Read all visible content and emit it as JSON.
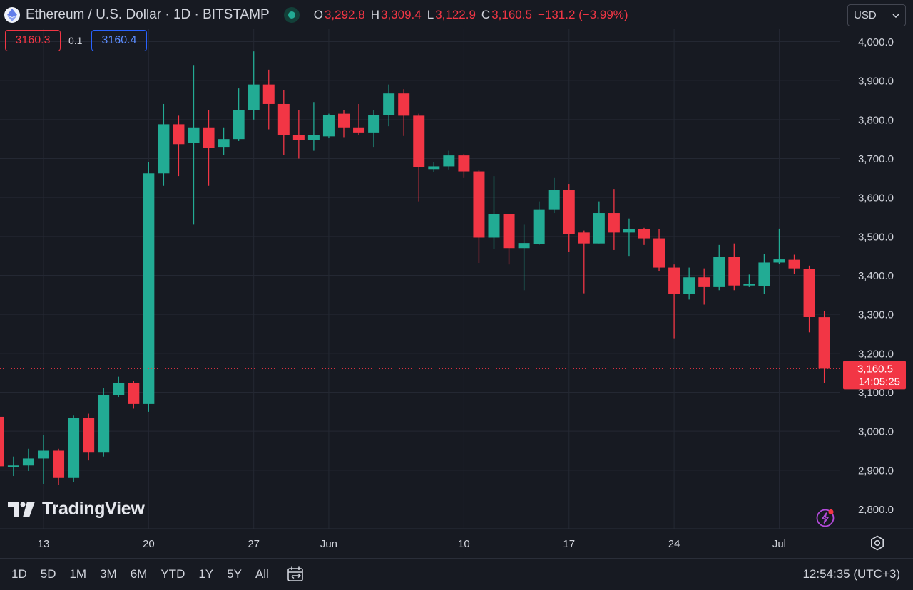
{
  "header": {
    "symbol_title": "Ethereum / U.S. Dollar · 1D · BITSTAMP",
    "ohlc": [
      {
        "key": "O",
        "value": "3,292.8"
      },
      {
        "key": "H",
        "value": "3,309.4"
      },
      {
        "key": "L",
        "value": "3,122.9"
      },
      {
        "key": "C",
        "value": "3,160.5"
      }
    ],
    "change": "−131.2 (−3.99%)"
  },
  "currency_select": {
    "value": "USD"
  },
  "quote": {
    "sell": "3160.3",
    "spread": "0.1",
    "buy": "3160.4"
  },
  "brand": {
    "name": "TradingView"
  },
  "last_price": {
    "price": "3,160.5",
    "countdown": "14:05:25"
  },
  "bottom_bar": {
    "ranges": [
      "1D",
      "5D",
      "1M",
      "3M",
      "6M",
      "YTD",
      "1Y",
      "5Y",
      "All"
    ],
    "clock": "12:54:35 (UTC+3)"
  },
  "colors": {
    "up": "#22ab94",
    "down": "#f23645",
    "background": "#171a22",
    "grid": "#242833"
  },
  "icons": [
    "ethereum-icon",
    "market-status-icon",
    "chevron-down-icon",
    "tradingview-logo-icon",
    "bolt-icon",
    "settings-gear-icon",
    "calendar-range-icon"
  ],
  "chart_data": {
    "type": "candlestick",
    "title": "Ethereum / U.S. Dollar · 1D · BITSTAMP",
    "y_ticks": [
      "4,000.0",
      "3,900.0",
      "3,800.0",
      "3,700.0",
      "3,600.0",
      "3,500.0",
      "3,400.0",
      "3,300.0",
      "3,200.0",
      "3,100.0",
      "3,000.0",
      "2,900.0",
      "2,800.0"
    ],
    "y_range": [
      2750,
      4060
    ],
    "x_ticks": [
      {
        "label": "13",
        "date": "2024-05-13"
      },
      {
        "label": "20",
        "date": "2024-05-20"
      },
      {
        "label": "27",
        "date": "2024-05-27"
      },
      {
        "label": "Jun",
        "date": "2024-06-01"
      },
      {
        "label": "10",
        "date": "2024-06-10"
      },
      {
        "label": "17",
        "date": "2024-06-17"
      },
      {
        "label": "24",
        "date": "2024-06-24"
      },
      {
        "label": "Jul",
        "date": "2024-07-01"
      }
    ],
    "x_range": [
      "2024-05-10",
      "2024-07-06"
    ],
    "grid": true,
    "last_price_line": 3160.5,
    "candles": [
      {
        "date": "2024-05-10",
        "o": 3037,
        "h": 3050,
        "l": 2900,
        "c": 2910
      },
      {
        "date": "2024-05-11",
        "o": 2910,
        "h": 2935,
        "l": 2885,
        "c": 2912
      },
      {
        "date": "2024-05-12",
        "o": 2912,
        "h": 2955,
        "l": 2898,
        "c": 2930
      },
      {
        "date": "2024-05-13",
        "o": 2930,
        "h": 2990,
        "l": 2865,
        "c": 2950
      },
      {
        "date": "2024-05-14",
        "o": 2950,
        "h": 2955,
        "l": 2862,
        "c": 2880
      },
      {
        "date": "2024-05-15",
        "o": 2880,
        "h": 3040,
        "l": 2870,
        "c": 3035
      },
      {
        "date": "2024-05-16",
        "o": 3035,
        "h": 3045,
        "l": 2925,
        "c": 2945
      },
      {
        "date": "2024-05-17",
        "o": 2945,
        "h": 3110,
        "l": 2935,
        "c": 3092
      },
      {
        "date": "2024-05-18",
        "o": 3092,
        "h": 3140,
        "l": 3088,
        "c": 3124
      },
      {
        "date": "2024-05-19",
        "o": 3124,
        "h": 3130,
        "l": 3058,
        "c": 3070
      },
      {
        "date": "2024-05-20",
        "o": 3070,
        "h": 3690,
        "l": 3050,
        "c": 3662
      },
      {
        "date": "2024-05-21",
        "o": 3662,
        "h": 3840,
        "l": 3630,
        "c": 3788
      },
      {
        "date": "2024-05-22",
        "o": 3788,
        "h": 3810,
        "l": 3655,
        "c": 3737
      },
      {
        "date": "2024-05-23",
        "o": 3740,
        "h": 3940,
        "l": 3530,
        "c": 3780
      },
      {
        "date": "2024-05-24",
        "o": 3780,
        "h": 3825,
        "l": 3630,
        "c": 3727
      },
      {
        "date": "2024-05-25",
        "o": 3730,
        "h": 3780,
        "l": 3710,
        "c": 3750
      },
      {
        "date": "2024-05-26",
        "o": 3750,
        "h": 3880,
        "l": 3745,
        "c": 3825
      },
      {
        "date": "2024-05-27",
        "o": 3825,
        "h": 3975,
        "l": 3800,
        "c": 3890
      },
      {
        "date": "2024-05-28",
        "o": 3890,
        "h": 3928,
        "l": 3775,
        "c": 3840
      },
      {
        "date": "2024-05-29",
        "o": 3840,
        "h": 3875,
        "l": 3710,
        "c": 3760
      },
      {
        "date": "2024-05-30",
        "o": 3760,
        "h": 3825,
        "l": 3700,
        "c": 3747
      },
      {
        "date": "2024-05-31",
        "o": 3747,
        "h": 3845,
        "l": 3720,
        "c": 3760
      },
      {
        "date": "2024-06-01",
        "o": 3757,
        "h": 3815,
        "l": 3752,
        "c": 3812
      },
      {
        "date": "2024-06-02",
        "o": 3815,
        "h": 3825,
        "l": 3755,
        "c": 3780
      },
      {
        "date": "2024-06-03",
        "o": 3780,
        "h": 3840,
        "l": 3760,
        "c": 3767
      },
      {
        "date": "2024-06-04",
        "o": 3767,
        "h": 3825,
        "l": 3730,
        "c": 3812
      },
      {
        "date": "2024-06-05",
        "o": 3812,
        "h": 3890,
        "l": 3783,
        "c": 3867
      },
      {
        "date": "2024-06-06",
        "o": 3867,
        "h": 3878,
        "l": 3758,
        "c": 3810
      },
      {
        "date": "2024-06-07",
        "o": 3810,
        "h": 3815,
        "l": 3590,
        "c": 3678
      },
      {
        "date": "2024-06-08",
        "o": 3673,
        "h": 3690,
        "l": 3665,
        "c": 3680
      },
      {
        "date": "2024-06-09",
        "o": 3680,
        "h": 3720,
        "l": 3672,
        "c": 3708
      },
      {
        "date": "2024-06-10",
        "o": 3708,
        "h": 3712,
        "l": 3650,
        "c": 3667
      },
      {
        "date": "2024-06-11",
        "o": 3667,
        "h": 3670,
        "l": 3432,
        "c": 3497
      },
      {
        "date": "2024-06-12",
        "o": 3497,
        "h": 3655,
        "l": 3468,
        "c": 3558
      },
      {
        "date": "2024-06-13",
        "o": 3558,
        "h": 3558,
        "l": 3428,
        "c": 3470
      },
      {
        "date": "2024-06-14",
        "o": 3470,
        "h": 3530,
        "l": 3362,
        "c": 3483
      },
      {
        "date": "2024-06-15",
        "o": 3480,
        "h": 3590,
        "l": 3478,
        "c": 3568
      },
      {
        "date": "2024-06-16",
        "o": 3568,
        "h": 3650,
        "l": 3560,
        "c": 3620
      },
      {
        "date": "2024-06-17",
        "o": 3620,
        "h": 3635,
        "l": 3460,
        "c": 3507
      },
      {
        "date": "2024-06-18",
        "o": 3510,
        "h": 3515,
        "l": 3354,
        "c": 3482
      },
      {
        "date": "2024-06-19",
        "o": 3482,
        "h": 3590,
        "l": 3482,
        "c": 3560
      },
      {
        "date": "2024-06-20",
        "o": 3560,
        "h": 3622,
        "l": 3465,
        "c": 3510
      },
      {
        "date": "2024-06-21",
        "o": 3510,
        "h": 3546,
        "l": 3450,
        "c": 3518
      },
      {
        "date": "2024-06-22",
        "o": 3518,
        "h": 3522,
        "l": 3478,
        "c": 3495
      },
      {
        "date": "2024-06-23",
        "o": 3495,
        "h": 3518,
        "l": 3410,
        "c": 3420
      },
      {
        "date": "2024-06-24",
        "o": 3420,
        "h": 3428,
        "l": 3237,
        "c": 3352
      },
      {
        "date": "2024-06-25",
        "o": 3352,
        "h": 3420,
        "l": 3338,
        "c": 3395
      },
      {
        "date": "2024-06-26",
        "o": 3395,
        "h": 3418,
        "l": 3325,
        "c": 3370
      },
      {
        "date": "2024-06-27",
        "o": 3370,
        "h": 3478,
        "l": 3362,
        "c": 3447
      },
      {
        "date": "2024-06-28",
        "o": 3447,
        "h": 3482,
        "l": 3362,
        "c": 3374
      },
      {
        "date": "2024-06-29",
        "o": 3374,
        "h": 3402,
        "l": 3370,
        "c": 3378
      },
      {
        "date": "2024-06-30",
        "o": 3373,
        "h": 3455,
        "l": 3352,
        "c": 3433
      },
      {
        "date": "2024-07-01",
        "o": 3433,
        "h": 3520,
        "l": 3430,
        "c": 3441
      },
      {
        "date": "2024-07-02",
        "o": 3440,
        "h": 3453,
        "l": 3403,
        "c": 3418
      },
      {
        "date": "2024-07-03",
        "o": 3416,
        "h": 3425,
        "l": 3254,
        "c": 3293
      },
      {
        "date": "2024-07-04",
        "o": 3292.8,
        "h": 3309.4,
        "l": 3122.9,
        "c": 3160.5
      }
    ]
  }
}
